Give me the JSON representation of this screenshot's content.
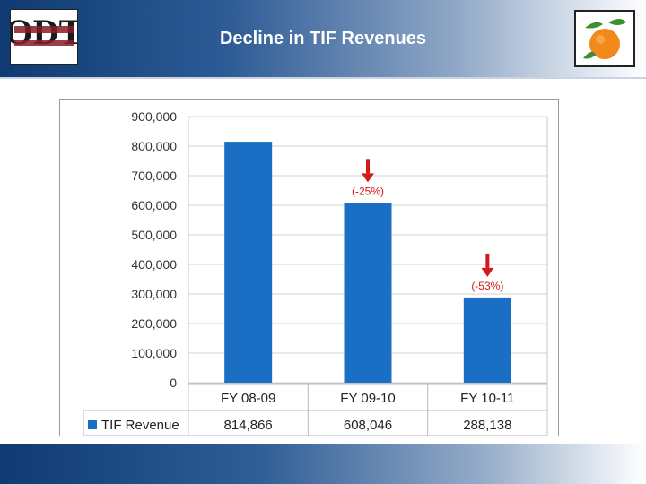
{
  "header": {
    "title": "Decline in TIF Revenues"
  },
  "logos": {
    "left": "ODT logo",
    "right": "orange logo"
  },
  "annotations": [
    {
      "label": "(-25%)",
      "category": "FY 09-10",
      "color": "#d21a1a"
    },
    {
      "label": "(-53%)",
      "category": "FY 10-11",
      "color": "#d21a1a"
    }
  ],
  "chart_data": {
    "type": "bar",
    "title": "",
    "categories": [
      "FY 08-09",
      "FY 09-10",
      "FY 10-11"
    ],
    "series": [
      {
        "name": "TIF Revenue",
        "values": [
          814866,
          608046,
          288138
        ],
        "color": "#1a6fc4"
      }
    ],
    "table_values": [
      "814,866",
      "608,046",
      "288,138"
    ],
    "y_ticks": [
      "0",
      "100,000",
      "200,000",
      "300,000",
      "400,000",
      "500,000",
      "600,000",
      "700,000",
      "800,000",
      "900,000"
    ],
    "ylim": [
      0,
      900000
    ],
    "grid": true,
    "legend": "data-table-left"
  }
}
